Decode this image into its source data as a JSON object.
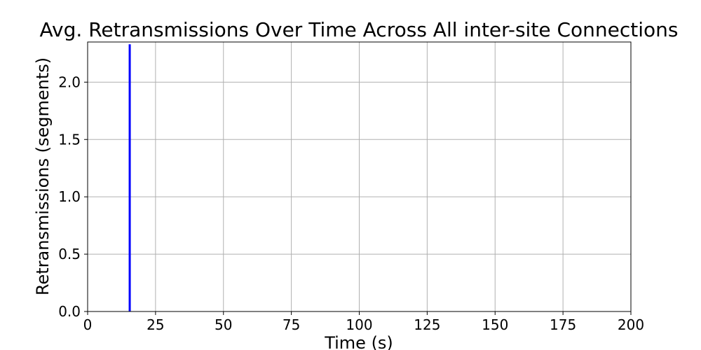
{
  "chart_data": {
    "type": "line",
    "title": "Avg. Retransmissions Over Time Across All inter-site Connections",
    "xlabel": "Time (s)",
    "ylabel": "Retransmissions (segments)",
    "xlim": [
      0,
      200
    ],
    "ylim": [
      0,
      2.35
    ],
    "xticks": [
      0,
      25,
      50,
      75,
      100,
      125,
      150,
      175,
      200
    ],
    "xtick_labels": [
      "0",
      "25",
      "50",
      "75",
      "100",
      "125",
      "150",
      "175",
      "200"
    ],
    "yticks": [
      0,
      0.5,
      1.0,
      1.5,
      2.0
    ],
    "ytick_labels": [
      "0.0",
      "0.5",
      "1.0",
      "1.5",
      "2.0"
    ],
    "grid": true,
    "series": [
      {
        "color": "#0000ff",
        "x": [
          15.5,
          15.5
        ],
        "y": [
          0,
          2.33
        ]
      }
    ]
  }
}
